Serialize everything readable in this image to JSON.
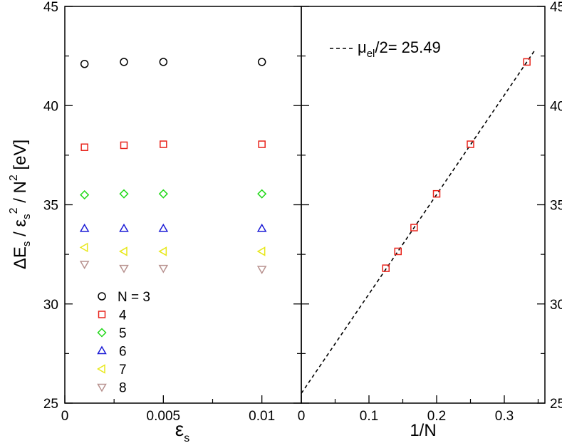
{
  "chart_data": [
    {
      "type": "scatter",
      "ylabel": "ΔE_s / ε_s^2 / N^2 [eV]",
      "xlabel": "ε_s",
      "xlim": [
        0,
        0.012
      ],
      "ylim": [
        25,
        45
      ],
      "x_ticks": [
        "0",
        "0.005",
        "0.01"
      ],
      "y_ticks": [
        "25",
        "30",
        "35",
        "40",
        "45"
      ],
      "legend_position": "bottom-left",
      "legend": [
        "N = 3",
        "4",
        "5",
        "6",
        "7",
        "8"
      ],
      "series": [
        {
          "name": "N = 3",
          "marker": "circle",
          "color": "#000000",
          "x": [
            0.001,
            0.003,
            0.005,
            0.01
          ],
          "y": [
            42.1,
            42.2,
            42.2,
            42.2
          ]
        },
        {
          "name": "4",
          "marker": "square",
          "color": "#e8231b",
          "x": [
            0.001,
            0.003,
            0.005,
            0.01
          ],
          "y": [
            37.9,
            38.0,
            38.05,
            38.05
          ]
        },
        {
          "name": "5",
          "marker": "diamond",
          "color": "#22d81a",
          "x": [
            0.001,
            0.003,
            0.005,
            0.01
          ],
          "y": [
            35.5,
            35.55,
            35.55,
            35.55
          ]
        },
        {
          "name": "6",
          "marker": "triangle-up",
          "color": "#1b1bd6",
          "x": [
            0.001,
            0.003,
            0.005,
            0.01
          ],
          "y": [
            33.8,
            33.8,
            33.8,
            33.8
          ]
        },
        {
          "name": "7",
          "marker": "triangle-left",
          "color": "#e8e81b",
          "x": [
            0.001,
            0.003,
            0.005,
            0.01
          ],
          "y": [
            32.85,
            32.65,
            32.65,
            32.65
          ]
        },
        {
          "name": "8",
          "marker": "triangle-down",
          "color": "#b8928f",
          "x": [
            0.001,
            0.003,
            0.005,
            0.01
          ],
          "y": [
            32.0,
            31.8,
            31.8,
            31.75
          ]
        }
      ]
    },
    {
      "type": "scatter",
      "xlabel": "1/N",
      "xlim": [
        0,
        0.36
      ],
      "ylim": [
        25,
        45
      ],
      "x_ticks": [
        "0",
        "0.1",
        "0.2",
        "0.3"
      ],
      "y_ticks": [
        "25",
        "30",
        "35",
        "40",
        "45"
      ],
      "legend_position": "top",
      "fit_label": "μ_el/2= 25.49",
      "fit": {
        "intercept": 25.49,
        "x_range": [
          0,
          0.345
        ],
        "color": "#000000",
        "dash": true
      },
      "series": [
        {
          "marker": "square",
          "color": "#e8231b",
          "x": [
            0.125,
            0.1429,
            0.1667,
            0.2,
            0.25,
            0.3333
          ],
          "y": [
            31.8,
            32.65,
            33.85,
            35.55,
            38.05,
            42.2
          ]
        }
      ]
    }
  ]
}
